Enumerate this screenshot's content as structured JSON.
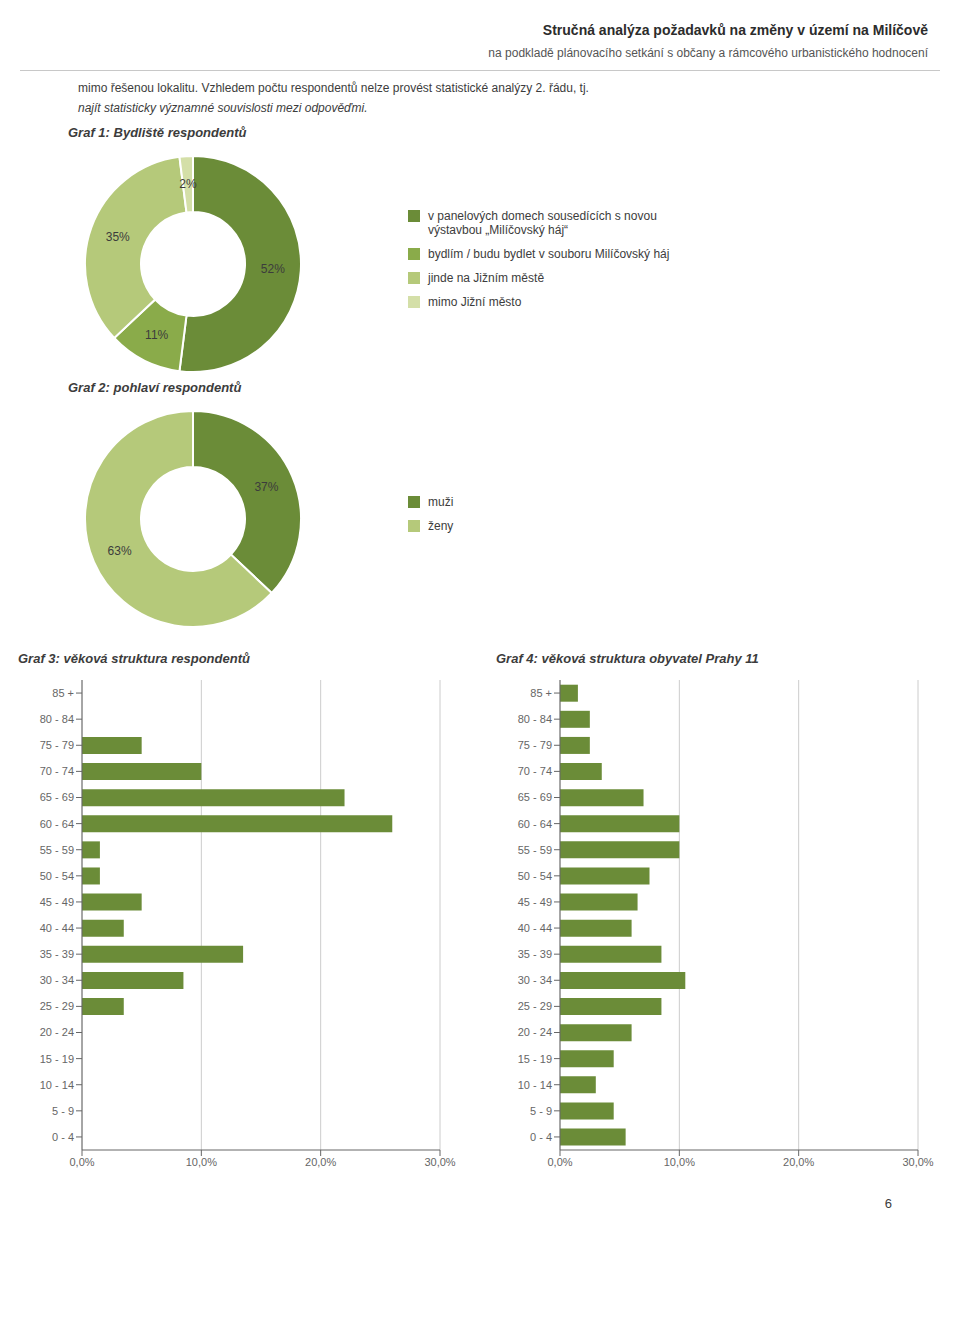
{
  "title": "Stručná analýza požadavků na změny v území na Milíčově",
  "subtitle": "na podkladě plánovacího setkání s občany a rámcového urbanistického hodnocení",
  "annotations": [
    "mimo řešenou lokalitu. Vzhledem počtu respondentů nelze provést statistické analýzy 2. řádu, tj.",
    "najít statisticky významné souvislosti mezi odpověďmi.",
    "6"
  ],
  "chart_data": [
    {
      "type": "pie",
      "title": "Graf 1: Bydliště respondentů",
      "categories": [
        "v panelových domech sousedících s novou\n  výstavbou „Milíčovský háj“",
        "bydlím / budu bydlet v souboru Milíčovský háj",
        "jinde na Jižním městě",
        "mimo Jižní město"
      ],
      "values": [
        52,
        11,
        35,
        2
      ],
      "value_labels": [
        "52%",
        "11%",
        "35%",
        "2%"
      ],
      "colors": [
        "#6b8c38",
        "#8aab4a",
        "#b5c97a",
        "#d4dfa8"
      ],
      "data_labels": true,
      "legend": "right"
    },
    {
      "type": "pie",
      "title": "Graf 2: pohlaví respondentů",
      "categories": [
        "muži",
        "ženy"
      ],
      "values": [
        37,
        63
      ],
      "value_labels": [
        "37%",
        "63%"
      ],
      "colors": [
        "#6b8c38",
        "#b5c97a"
      ],
      "data_labels": true,
      "legend": "right"
    },
    {
      "type": "bar",
      "title": "Graf 3: věková struktura respondentů",
      "orientation": "horizontal",
      "categories": [
        "85 +",
        "80 - 84",
        "75 - 79",
        "70 - 74",
        "65 - 69",
        "60 - 64",
        "55 - 59",
        "50 - 54",
        "45 - 49",
        "40 - 44",
        "35 - 39",
        "30 - 34",
        "25 - 29",
        "20 - 24",
        "15 - 19",
        "10 - 14",
        "5 - 9",
        "0 - 4"
      ],
      "values": [
        0.0,
        0.0,
        5.0,
        10.0,
        22.0,
        26.0,
        1.5,
        1.5,
        5.0,
        3.5,
        13.5,
        8.5,
        3.5,
        0.0,
        0.0,
        0.0,
        0.0,
        0.0
      ],
      "color": "#6b8c38",
      "xlim": [
        0,
        30
      ],
      "xticks": [
        {
          "value": 0,
          "label": "0,0%"
        },
        {
          "value": 10,
          "label": "10,0%"
        },
        {
          "value": 20,
          "label": "20,0%"
        },
        {
          "value": 30,
          "label": "30,0%"
        }
      ],
      "grid": true
    },
    {
      "type": "bar",
      "title": "Graf 4: věková struktura obyvatel Prahy 11",
      "orientation": "horizontal",
      "categories": [
        "85 +",
        "80 - 84",
        "75 - 79",
        "70 - 74",
        "65 - 69",
        "60 - 64",
        "55 - 59",
        "50 - 54",
        "45 - 49",
        "40 - 44",
        "35 - 39",
        "30 - 34",
        "25 - 29",
        "20 - 24",
        "15 - 19",
        "10 - 14",
        "5 - 9",
        "0 - 4"
      ],
      "values": [
        1.5,
        2.5,
        2.5,
        3.5,
        7.0,
        10.0,
        10.0,
        7.5,
        6.5,
        6.0,
        8.5,
        10.5,
        8.5,
        6.0,
        4.5,
        3.0,
        4.5,
        5.5
      ],
      "color": "#6b8c38",
      "xlim": [
        0,
        30
      ],
      "xticks": [
        {
          "value": 0,
          "label": "0,0%"
        },
        {
          "value": 10,
          "label": "10,0%"
        },
        {
          "value": 20,
          "label": "20,0%"
        },
        {
          "value": 30,
          "label": "30,0%"
        }
      ],
      "grid": true
    }
  ]
}
